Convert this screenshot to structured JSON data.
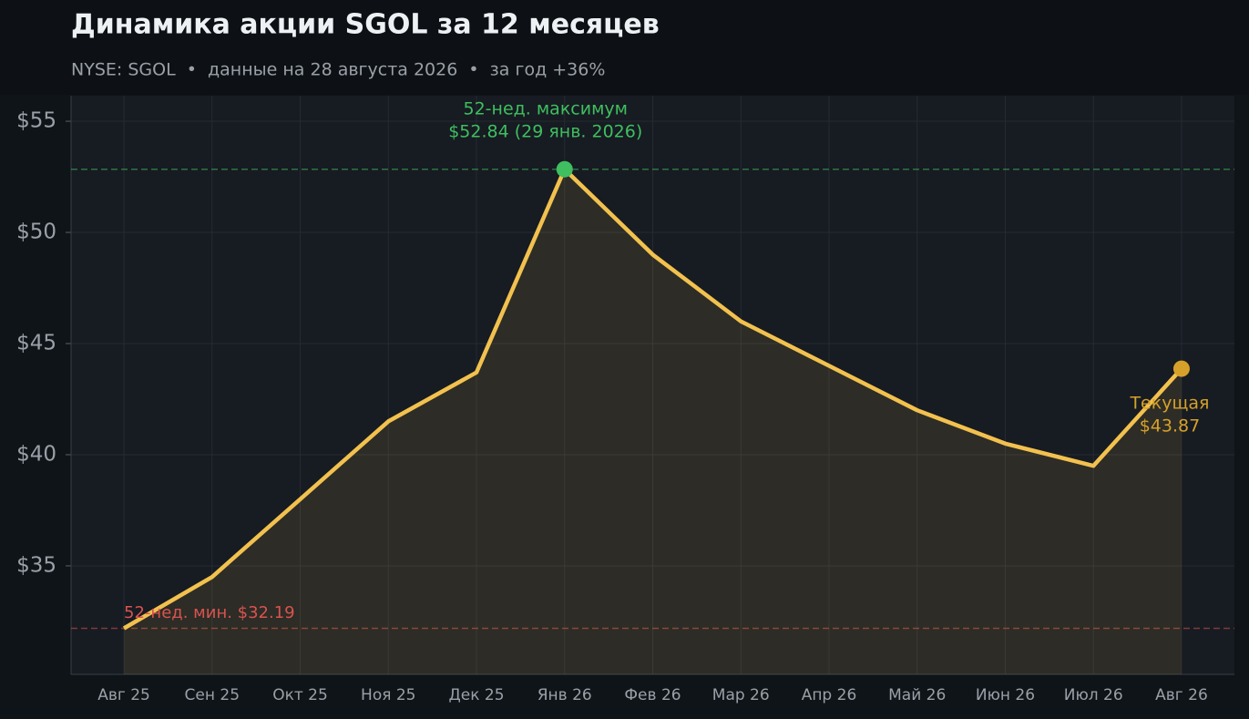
{
  "chart_data": {
    "type": "line",
    "title": "Динамика акции SGOL за 12 месяцев",
    "subtitle": "NYSE: SGOL  •  данные на 28 августа 2026  •  за год +36%",
    "categories": [
      "Авг 25",
      "Сен 25",
      "Окт 25",
      "Ноя 25",
      "Дек 25",
      "Янв 26",
      "Фев 26",
      "Мар 26",
      "Апр 26",
      "Май 26",
      "Июн 26",
      "Июл 26",
      "Авг 26"
    ],
    "values": [
      32.19,
      34.5,
      38.0,
      41.5,
      43.7,
      52.84,
      49.0,
      46.0,
      44.0,
      42.0,
      40.5,
      39.5,
      43.87
    ],
    "color": "#f2c14e",
    "ylim": [
      30.12,
      56.15
    ],
    "yticks": [
      {
        "value": 35,
        "label": "$35"
      },
      {
        "value": 40,
        "label": "$40"
      },
      {
        "value": 45,
        "label": "$45"
      },
      {
        "value": 50,
        "label": "$50"
      },
      {
        "value": 55,
        "label": "$55"
      }
    ],
    "grid": true,
    "high": {
      "value": 52.84,
      "color": "#3fbf5f",
      "label": [
        "52-нед. максимум",
        "$52.84 (29 янв. 2026)"
      ]
    },
    "low": {
      "value": 32.19,
      "color": "#d9534f",
      "label": "52-нед. мин. $32.19"
    },
    "current": {
      "value": 43.87,
      "color": "#d6a12a",
      "label": [
        "Текущая",
        "$43.87"
      ]
    }
  }
}
